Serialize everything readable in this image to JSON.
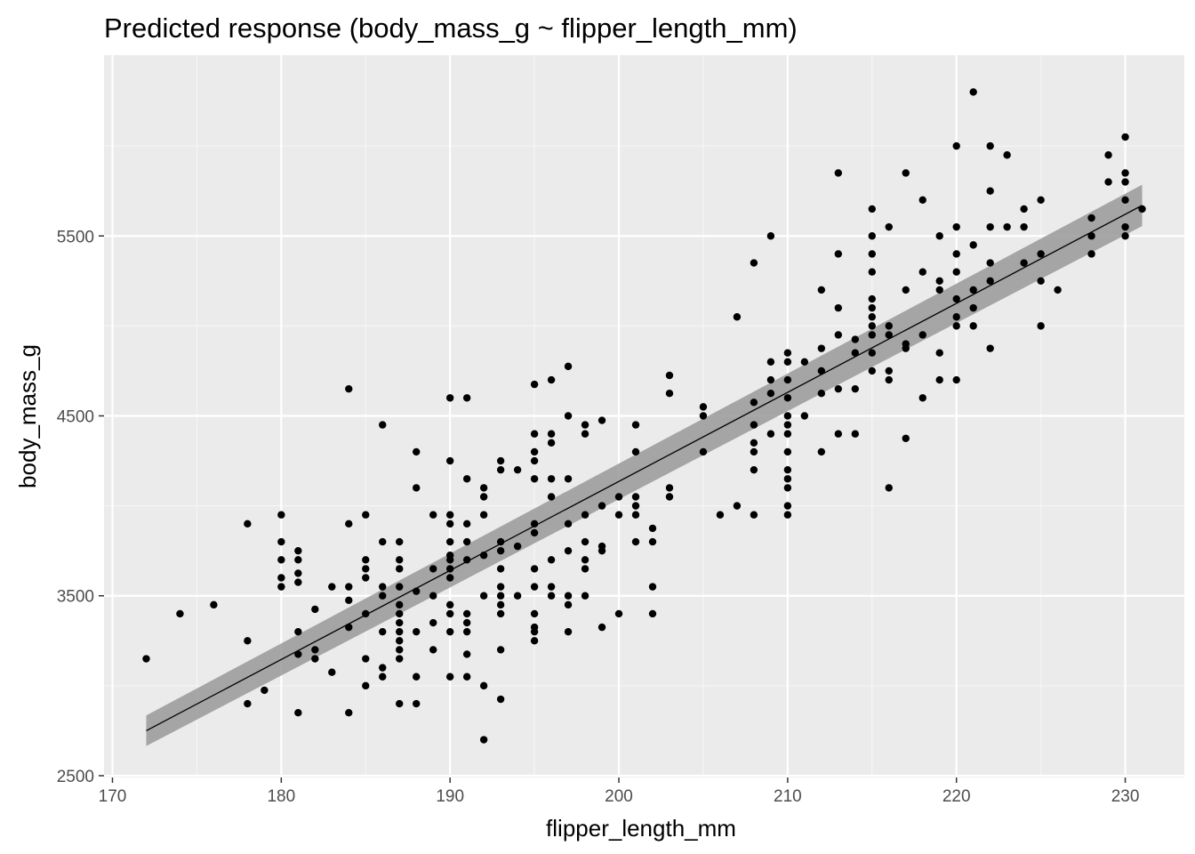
{
  "chart_data": {
    "type": "scatter",
    "title": "Predicted response (body_mass_g ~ flipper_length_mm)",
    "xlabel": "flipper_length_mm",
    "ylabel": "body_mass_g",
    "xlim": [
      169.5,
      233.5
    ],
    "ylim": [
      2490,
      6505
    ],
    "x_ticks": [
      "170",
      "180",
      "190",
      "200",
      "210",
      "220",
      "230"
    ],
    "y_ticks": [
      "2500",
      "3500",
      "4500",
      "5500"
    ],
    "grid": true,
    "panel_background": "#EBEBEB",
    "point_color": "#000000",
    "fit_line": {
      "x": [
        172,
        231
      ],
      "y": [
        2750,
        5670
      ],
      "color": "#000000"
    },
    "confidence_band": {
      "x": [
        172,
        231
      ],
      "lower": [
        2665,
        5555
      ],
      "upper": [
        2835,
        5785
      ],
      "color": "#999999"
    },
    "points": [
      [
        172,
        3150
      ],
      [
        174,
        3400
      ],
      [
        176,
        3450
      ],
      [
        178,
        3900
      ],
      [
        178,
        3250
      ],
      [
        178,
        2900
      ],
      [
        179,
        2975
      ],
      [
        180,
        3950
      ],
      [
        180,
        3800
      ],
      [
        180,
        3700
      ],
      [
        180,
        3600
      ],
      [
        180,
        3550
      ],
      [
        181,
        3750
      ],
      [
        181,
        3700
      ],
      [
        181,
        3625
      ],
      [
        181,
        3575
      ],
      [
        181,
        3300
      ],
      [
        181,
        3175
      ],
      [
        181,
        2850
      ],
      [
        182,
        3425
      ],
      [
        182,
        3200
      ],
      [
        182,
        3150
      ],
      [
        183,
        3550
      ],
      [
        183,
        3075
      ],
      [
        184,
        4650
      ],
      [
        184,
        3900
      ],
      [
        184,
        3550
      ],
      [
        184,
        3475
      ],
      [
        184,
        3325
      ],
      [
        184,
        2850
      ],
      [
        185,
        3950
      ],
      [
        185,
        3700
      ],
      [
        185,
        3650
      ],
      [
        185,
        3600
      ],
      [
        185,
        3400
      ],
      [
        185,
        3150
      ],
      [
        185,
        3000
      ],
      [
        186,
        4450
      ],
      [
        186,
        3800
      ],
      [
        186,
        3550
      ],
      [
        186,
        3500
      ],
      [
        186,
        3300
      ],
      [
        186,
        3100
      ],
      [
        186,
        3050
      ],
      [
        187,
        3800
      ],
      [
        187,
        3700
      ],
      [
        187,
        3650
      ],
      [
        187,
        3550
      ],
      [
        187,
        3450
      ],
      [
        187,
        3400
      ],
      [
        187,
        3350
      ],
      [
        187,
        3300
      ],
      [
        187,
        3250
      ],
      [
        187,
        3200
      ],
      [
        187,
        3150
      ],
      [
        187,
        2900
      ],
      [
        188,
        4300
      ],
      [
        188,
        4100
      ],
      [
        188,
        3525
      ],
      [
        188,
        3300
      ],
      [
        188,
        3050
      ],
      [
        188,
        2900
      ],
      [
        189,
        3950
      ],
      [
        189,
        3650
      ],
      [
        189,
        3500
      ],
      [
        189,
        3350
      ],
      [
        189,
        3200
      ],
      [
        190,
        4600
      ],
      [
        190,
        4250
      ],
      [
        190,
        3950
      ],
      [
        190,
        3900
      ],
      [
        190,
        3800
      ],
      [
        190,
        3725
      ],
      [
        190,
        3700
      ],
      [
        190,
        3650
      ],
      [
        190,
        3600
      ],
      [
        190,
        3450
      ],
      [
        190,
        3400
      ],
      [
        190,
        3300
      ],
      [
        190,
        3050
      ],
      [
        191,
        4600
      ],
      [
        191,
        4150
      ],
      [
        191,
        3900
      ],
      [
        191,
        3800
      ],
      [
        191,
        3700
      ],
      [
        191,
        3400
      ],
      [
        191,
        3350
      ],
      [
        191,
        3300
      ],
      [
        191,
        3175
      ],
      [
        191,
        3050
      ],
      [
        192,
        4100
      ],
      [
        192,
        4050
      ],
      [
        192,
        3950
      ],
      [
        192,
        3725
      ],
      [
        192,
        3500
      ],
      [
        192,
        3000
      ],
      [
        192,
        2700
      ],
      [
        193,
        4250
      ],
      [
        193,
        4200
      ],
      [
        193,
        3800
      ],
      [
        193,
        3750
      ],
      [
        193,
        3650
      ],
      [
        193,
        3550
      ],
      [
        193,
        3500
      ],
      [
        193,
        3450
      ],
      [
        193,
        3400
      ],
      [
        193,
        3200
      ],
      [
        193,
        2925
      ],
      [
        194,
        4200
      ],
      [
        194,
        3775
      ],
      [
        194,
        3500
      ],
      [
        195,
        4675
      ],
      [
        195,
        4400
      ],
      [
        195,
        4300
      ],
      [
        195,
        4250
      ],
      [
        195,
        4150
      ],
      [
        195,
        3900
      ],
      [
        195,
        3850
      ],
      [
        195,
        3650
      ],
      [
        195,
        3550
      ],
      [
        195,
        3400
      ],
      [
        195,
        3325
      ],
      [
        195,
        3300
      ],
      [
        195,
        3250
      ],
      [
        196,
        4700
      ],
      [
        196,
        4400
      ],
      [
        196,
        4350
      ],
      [
        196,
        4150
      ],
      [
        196,
        4050
      ],
      [
        196,
        3700
      ],
      [
        196,
        3550
      ],
      [
        196,
        3500
      ],
      [
        197,
        4775
      ],
      [
        197,
        4500
      ],
      [
        197,
        4150
      ],
      [
        197,
        3900
      ],
      [
        197,
        3750
      ],
      [
        197,
        3500
      ],
      [
        197,
        3450
      ],
      [
        197,
        3300
      ],
      [
        198,
        4450
      ],
      [
        198,
        4400
      ],
      [
        198,
        3950
      ],
      [
        198,
        3800
      ],
      [
        198,
        3700
      ],
      [
        198,
        3650
      ],
      [
        198,
        3500
      ],
      [
        199,
        4475
      ],
      [
        199,
        4000
      ],
      [
        199,
        3775
      ],
      [
        199,
        3750
      ],
      [
        199,
        3325
      ],
      [
        200,
        4050
      ],
      [
        200,
        3950
      ],
      [
        200,
        3400
      ],
      [
        201,
        4450
      ],
      [
        201,
        4300
      ],
      [
        201,
        4050
      ],
      [
        201,
        4000
      ],
      [
        201,
        3950
      ],
      [
        201,
        3800
      ],
      [
        202,
        3875
      ],
      [
        202,
        3800
      ],
      [
        202,
        3550
      ],
      [
        202,
        3400
      ],
      [
        203,
        4725
      ],
      [
        203,
        4625
      ],
      [
        203,
        4100
      ],
      [
        203,
        4050
      ],
      [
        205,
        4550
      ],
      [
        205,
        4500
      ],
      [
        205,
        4300
      ],
      [
        206,
        3950
      ],
      [
        207,
        5050
      ],
      [
        207,
        4000
      ],
      [
        208,
        5350
      ],
      [
        208,
        4575
      ],
      [
        208,
        4450
      ],
      [
        208,
        4350
      ],
      [
        208,
        4300
      ],
      [
        208,
        4200
      ],
      [
        208,
        3950
      ],
      [
        209,
        5500
      ],
      [
        209,
        4800
      ],
      [
        209,
        4700
      ],
      [
        209,
        4625
      ],
      [
        209,
        4400
      ],
      [
        210,
        4850
      ],
      [
        210,
        4800
      ],
      [
        210,
        4700
      ],
      [
        210,
        4600
      ],
      [
        210,
        4500
      ],
      [
        210,
        4450
      ],
      [
        210,
        4400
      ],
      [
        210,
        4300
      ],
      [
        210,
        4200
      ],
      [
        210,
        4150
      ],
      [
        210,
        4100
      ],
      [
        210,
        4000
      ],
      [
        210,
        3950
      ],
      [
        211,
        4800
      ],
      [
        211,
        4500
      ],
      [
        212,
        5200
      ],
      [
        212,
        4875
      ],
      [
        212,
        4750
      ],
      [
        212,
        4625
      ],
      [
        212,
        4300
      ],
      [
        213,
        5850
      ],
      [
        213,
        5400
      ],
      [
        213,
        5100
      ],
      [
        213,
        4950
      ],
      [
        213,
        4650
      ],
      [
        213,
        4400
      ],
      [
        214,
        4925
      ],
      [
        214,
        4850
      ],
      [
        214,
        4650
      ],
      [
        214,
        4400
      ],
      [
        215,
        5650
      ],
      [
        215,
        5500
      ],
      [
        215,
        5400
      ],
      [
        215,
        5300
      ],
      [
        215,
        5150
      ],
      [
        215,
        5100
      ],
      [
        215,
        5050
      ],
      [
        215,
        5000
      ],
      [
        215,
        4950
      ],
      [
        215,
        4850
      ],
      [
        215,
        4750
      ],
      [
        216,
        5550
      ],
      [
        216,
        5000
      ],
      [
        216,
        4950
      ],
      [
        216,
        4750
      ],
      [
        216,
        4700
      ],
      [
        216,
        4100
      ],
      [
        217,
        5850
      ],
      [
        217,
        5200
      ],
      [
        217,
        4900
      ],
      [
        217,
        4875
      ],
      [
        217,
        4375
      ],
      [
        218,
        5700
      ],
      [
        218,
        5300
      ],
      [
        218,
        4950
      ],
      [
        218,
        4600
      ],
      [
        219,
        5500
      ],
      [
        219,
        5250
      ],
      [
        219,
        5200
      ],
      [
        219,
        4850
      ],
      [
        219,
        4700
      ],
      [
        220,
        6000
      ],
      [
        220,
        5550
      ],
      [
        220,
        5400
      ],
      [
        220,
        5300
      ],
      [
        220,
        5150
      ],
      [
        220,
        5050
      ],
      [
        220,
        5000
      ],
      [
        220,
        4700
      ],
      [
        221,
        6300
      ],
      [
        221,
        5450
      ],
      [
        221,
        5200
      ],
      [
        221,
        5100
      ],
      [
        221,
        5000
      ],
      [
        222,
        6000
      ],
      [
        222,
        5750
      ],
      [
        222,
        5550
      ],
      [
        222,
        5350
      ],
      [
        222,
        5250
      ],
      [
        222,
        4875
      ],
      [
        223,
        5950
      ],
      [
        223,
        5550
      ],
      [
        224,
        5650
      ],
      [
        224,
        5550
      ],
      [
        224,
        5350
      ],
      [
        225,
        5700
      ],
      [
        225,
        5400
      ],
      [
        225,
        5250
      ],
      [
        225,
        5000
      ],
      [
        226,
        5200
      ],
      [
        228,
        5600
      ],
      [
        228,
        5500
      ],
      [
        228,
        5400
      ],
      [
        229,
        5950
      ],
      [
        229,
        5800
      ],
      [
        230,
        6050
      ],
      [
        230,
        5850
      ],
      [
        230,
        5800
      ],
      [
        230,
        5700
      ],
      [
        230,
        5550
      ],
      [
        230,
        5500
      ],
      [
        231,
        5650
      ]
    ]
  }
}
